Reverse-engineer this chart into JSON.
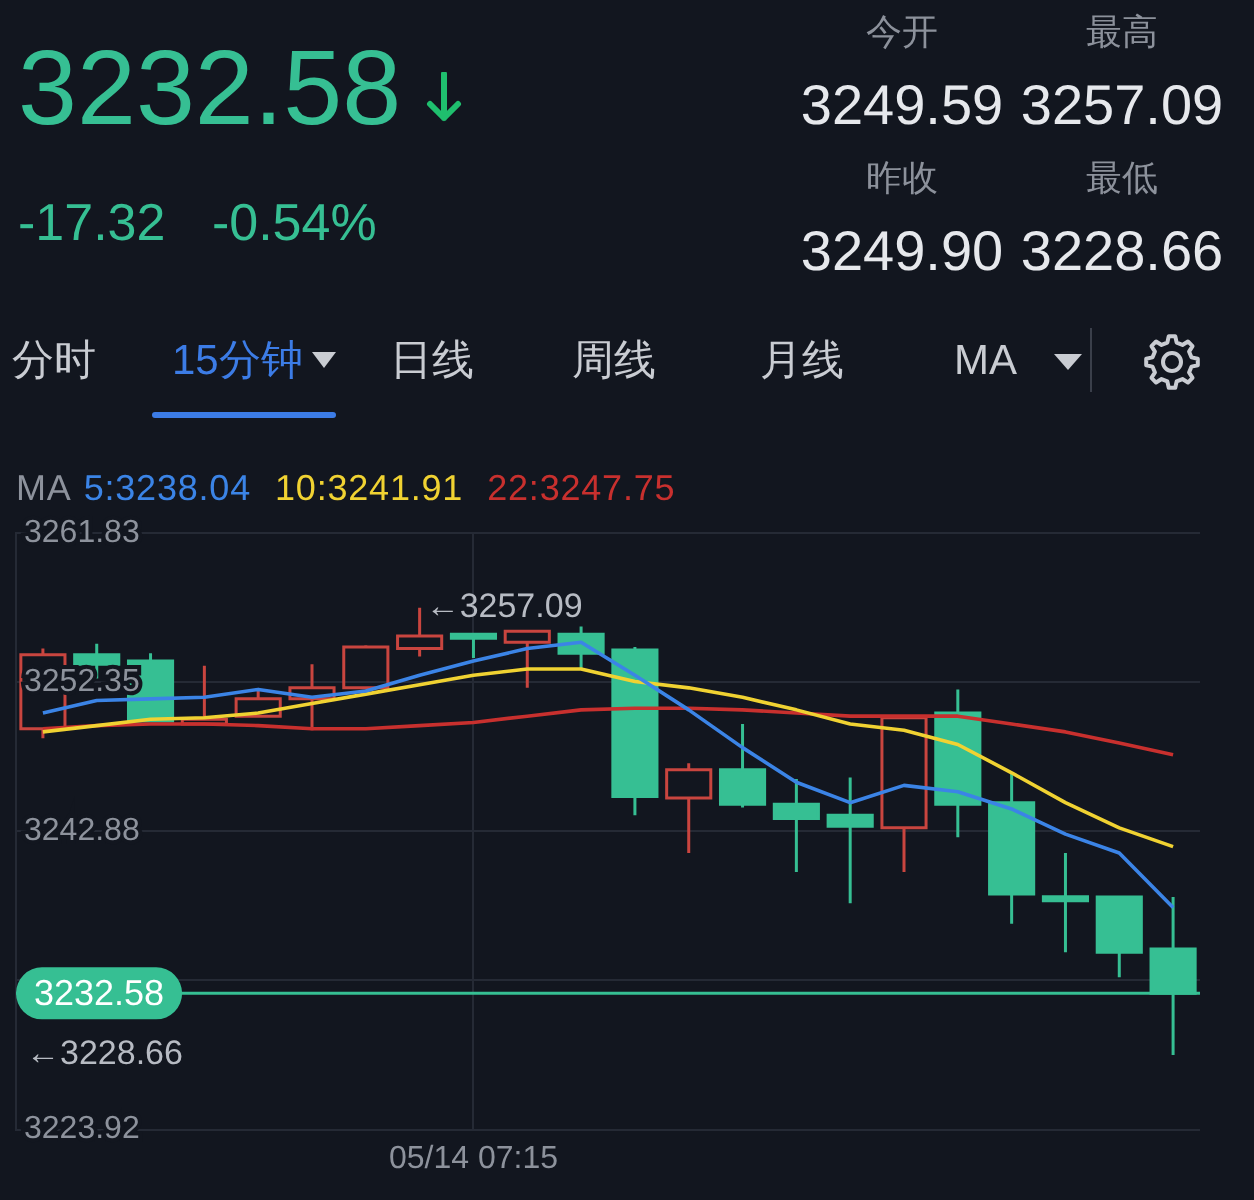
{
  "chart_data": {
    "type": "candlestick",
    "title": "3232.58",
    "subtitle": "-17.32 -0.54%",
    "legend_title": "MA",
    "legend": "top left",
    "grid": true,
    "categories": [
      null,
      null,
      null,
      null,
      null,
      null,
      null,
      null,
      "05/14 07:15",
      null,
      null,
      null,
      null,
      null,
      null,
      null,
      null,
      null,
      null,
      null,
      null,
      null
    ],
    "ohlc": [
      [
        3249.4,
        3254.5,
        3248.8,
        3254.1
      ],
      [
        3254.1,
        3254.8,
        3252.6,
        3253.5
      ],
      [
        3253.7,
        3254.2,
        3249.8,
        3249.9
      ],
      [
        3249.7,
        3253.4,
        3249.6,
        3250.0
      ],
      [
        3250.2,
        3251.8,
        3250.1,
        3251.3
      ],
      [
        3251.3,
        3253.5,
        3249.3,
        3252.0
      ],
      [
        3252.0,
        3254.7,
        3251.9,
        3254.6
      ],
      [
        3254.5,
        3257.09,
        3254.0,
        3255.3
      ],
      [
        3255.35,
        3255.4,
        3253.9,
        3255.2
      ],
      [
        3254.9,
        3255.7,
        3252.0,
        3255.6
      ],
      [
        3255.4,
        3255.9,
        3253.2,
        3254.2
      ],
      [
        3254.4,
        3254.6,
        3243.9,
        3245.1
      ],
      [
        3245.0,
        3247.2,
        3241.5,
        3246.8
      ],
      [
        3246.8,
        3249.7,
        3244.4,
        3244.6
      ],
      [
        3244.6,
        3246.2,
        3240.3,
        3243.7
      ],
      [
        3243.9,
        3246.3,
        3238.3,
        3243.2
      ],
      [
        3243.1,
        3250.2,
        3240.3,
        3250.1
      ],
      [
        3250.4,
        3251.9,
        3242.5,
        3244.6
      ],
      [
        3244.7,
        3246.6,
        3237.0,
        3238.9
      ],
      [
        3238.7,
        3241.5,
        3235.2,
        3238.5
      ],
      [
        3238.7,
        3238.8,
        3233.6,
        3235.2
      ],
      [
        3235.4,
        3238.7,
        3228.66,
        3232.58
      ]
    ],
    "colors": [
      "#c9453f",
      "#36bf93",
      "#36bf93",
      "#c9453f",
      "#c9453f",
      "#c9453f",
      "#c9453f",
      "#c9453f",
      "#36bf93",
      "#c9453f",
      "#36bf93",
      "#36bf93",
      "#c9453f",
      "#36bf93",
      "#36bf93",
      "#36bf93",
      "#c9453f",
      "#36bf93",
      "#36bf93",
      "#36bf93",
      "#36bf93",
      "#36bf93"
    ],
    "series": [
      {
        "type": "line",
        "name": "5:3238.04",
        "color": "#3b84e6",
        "values": [
          3250.4,
          3251.2,
          3251.3,
          3251.4,
          3251.9,
          3251.4,
          3251.8,
          3252.8,
          3253.7,
          3254.5,
          3254.9,
          3252.8,
          3250.6,
          3248.2,
          3246.0,
          3244.7,
          3245.8,
          3245.4,
          3244.3,
          3242.7,
          3241.5,
          3238.04
        ]
      },
      {
        "type": "line",
        "name": "10:3241.91",
        "color": "#f0d232",
        "values": [
          3249.2,
          3249.6,
          3250.0,
          3250.1,
          3250.4,
          3251.0,
          3251.6,
          3252.2,
          3252.8,
          3253.2,
          3253.2,
          3252.4,
          3252.0,
          3251.4,
          3250.6,
          3249.7,
          3249.3,
          3248.4,
          3246.6,
          3244.7,
          3243.1,
          3241.91
        ]
      },
      {
        "type": "line",
        "name": "22:3247.75",
        "color": "#c8302e",
        "values": [
          3249.4,
          3249.6,
          3249.7,
          3249.7,
          3249.6,
          3249.4,
          3249.4,
          3249.6,
          3249.8,
          3250.2,
          3250.6,
          3250.7,
          3250.7,
          3250.6,
          3250.4,
          3250.2,
          3250.2,
          3250.2,
          3249.7,
          3249.2,
          3248.5,
          3247.75
        ]
      }
    ],
    "ylim": [
      3223.92,
      3261.83
    ],
    "yticks": [
      3223.92,
      {
        "value": 3233.4,
        "label": null
      },
      3242.88,
      3252.35,
      3261.83
    ],
    "ref_lines": [
      {
        "axis": "y",
        "value": 3232.58,
        "label": "3232.58",
        "color": "#36bf93"
      }
    ],
    "annotations": [
      "今开",
      "3249.59",
      "最高",
      "3257.09",
      "昨收",
      "3249.90",
      "最低",
      "3228.66",
      "分时",
      "15分钟",
      "日线",
      "周线",
      "月线",
      "MA",
      "←3257.09",
      "←3228.66"
    ]
  }
}
